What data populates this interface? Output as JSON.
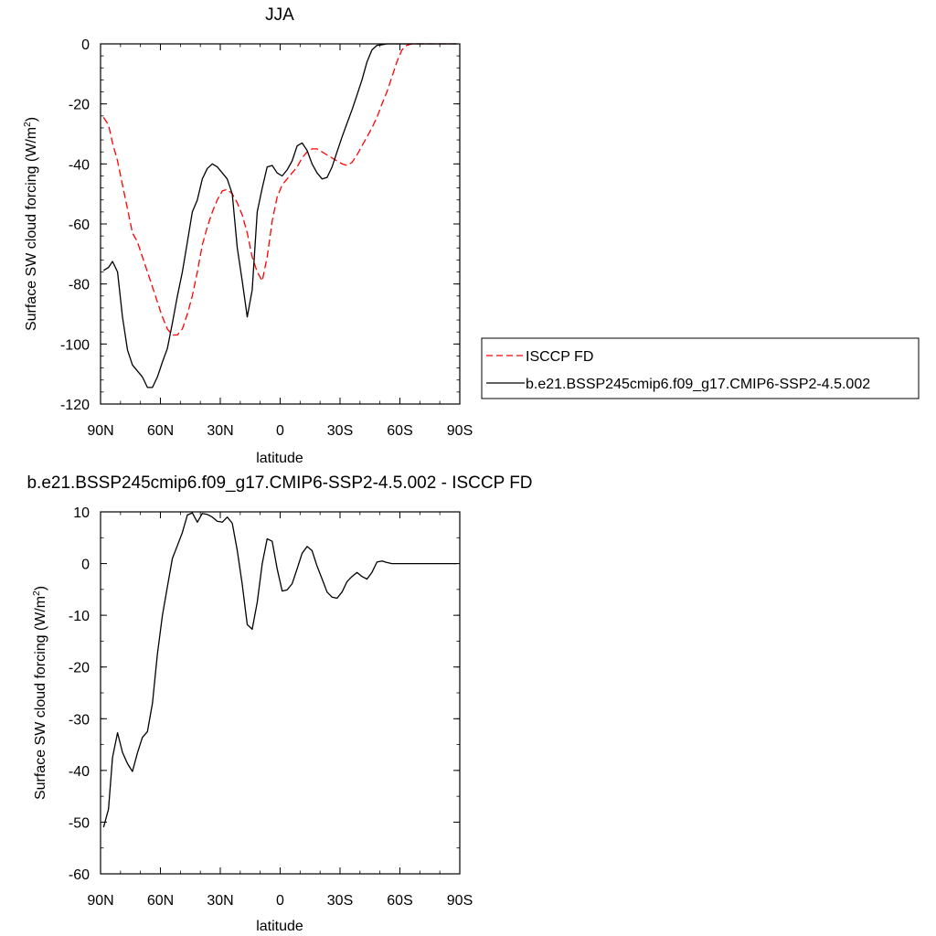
{
  "chart_data": [
    {
      "type": "line",
      "title": "JJA",
      "xlabel": "latitude",
      "ylabel": "Surface SW cloud forcing (W/m²)",
      "ylabel_parts": [
        "Surface SW cloud forcing (W/m",
        "2",
        ")"
      ],
      "xlim": [
        -90,
        90
      ],
      "ylim": [
        -120,
        0
      ],
      "x_ticks": [
        -90,
        -60,
        -30,
        0,
        30,
        60,
        90
      ],
      "x_ticklabels": [
        "90N",
        "60N",
        "30N",
        "0",
        "30S",
        "60S",
        "90S"
      ],
      "y_ticks": [
        -120,
        -100,
        -80,
        -60,
        -40,
        -20,
        0
      ],
      "y_ticklabels": [
        "-120",
        "-100",
        "-80",
        "-60",
        "-40",
        "-20",
        "0"
      ],
      "legend": "right",
      "series": [
        {
          "name": "ISCCP FD",
          "color": "#ff0000",
          "dash": "dashed",
          "x": [
            -88.5,
            -86,
            -84,
            -81.5,
            -79,
            -76.5,
            -74,
            -71.5,
            -69,
            -66.5,
            -64,
            -61.5,
            -59,
            -56.5,
            -54,
            -51.5,
            -49,
            -46.5,
            -44,
            -41.5,
            -39,
            -36.5,
            -34,
            -31.5,
            -29,
            -26.5,
            -24,
            -21.5,
            -19,
            -16.5,
            -14,
            -11.5,
            -9,
            -6.5,
            -4,
            -1.5,
            1,
            3.5,
            6,
            8.5,
            11,
            13.5,
            16,
            18.5,
            21,
            23.5,
            26,
            28.5,
            31,
            33.5,
            36,
            38.5,
            41,
            43.5,
            46,
            48.5,
            51,
            53.5,
            56,
            58.5,
            61,
            63.5,
            66,
            68.5,
            71,
            73.5,
            76,
            78.5,
            81,
            83.5,
            86,
            88.5
          ],
          "values": [
            -24.5,
            -27,
            -33,
            -39,
            -47,
            -55,
            -63,
            -66,
            -71,
            -76,
            -81,
            -86,
            -91,
            -95,
            -97,
            -97,
            -95,
            -90,
            -84,
            -76,
            -67,
            -61,
            -56,
            -52,
            -49,
            -48.5,
            -50,
            -53,
            -57,
            -63,
            -71,
            -76,
            -79,
            -71,
            -59,
            -51,
            -47,
            -45,
            -43,
            -41,
            -38,
            -36,
            -35,
            -35,
            -36,
            -37,
            -38,
            -39,
            -40,
            -40.5,
            -39.5,
            -37,
            -34,
            -31,
            -28,
            -24.5,
            -20,
            -16,
            -11,
            -6,
            -2,
            -0.5,
            0,
            0,
            0,
            0,
            0,
            0,
            0,
            0,
            0,
            0
          ]
        },
        {
          "name": "b.e21.BSSP245cmip6.f09_g17.CMIP6-SSP2-4.5.002",
          "color": "#000000",
          "dash": "solid",
          "x": [
            -88.5,
            -86,
            -84,
            -81.5,
            -79,
            -76.5,
            -74,
            -71.5,
            -69,
            -66.5,
            -64,
            -61.5,
            -59,
            -56.5,
            -54,
            -51.5,
            -49,
            -46.5,
            -44,
            -41.5,
            -39,
            -36.5,
            -34,
            -31.5,
            -29,
            -26.5,
            -24,
            -21.5,
            -19,
            -16.5,
            -14,
            -11.5,
            -9,
            -6.5,
            -4,
            -1.5,
            1,
            3.5,
            6,
            8.5,
            11,
            13.5,
            16,
            18.5,
            21,
            23.5,
            26,
            28.5,
            31,
            33.5,
            36,
            38.5,
            41,
            43.5,
            46,
            48.5,
            51,
            53.5,
            56,
            58.5,
            61,
            63.5,
            66,
            68.5,
            71,
            73.5,
            76,
            78.5,
            81,
            83.5,
            86,
            88.5
          ],
          "values": [
            -75.5,
            -74.5,
            -72.5,
            -76,
            -91,
            -102,
            -107,
            -109,
            -111,
            -114.5,
            -114.5,
            -111,
            -106,
            -101.5,
            -93,
            -84,
            -76,
            -66,
            -56,
            -52,
            -45,
            -41.5,
            -40,
            -41,
            -43,
            -45,
            -50,
            -68,
            -79,
            -91,
            -82,
            -56,
            -48,
            -41,
            -40.5,
            -43,
            -44,
            -42,
            -39,
            -34,
            -33,
            -35.5,
            -40,
            -43,
            -45,
            -44.5,
            -41,
            -36,
            -31,
            -26.5,
            -22,
            -17,
            -12,
            -6,
            -2,
            -0.5,
            -0.3,
            0,
            0,
            0,
            0,
            0,
            0,
            0,
            0,
            0,
            0,
            0,
            0,
            0,
            0,
            0
          ]
        }
      ]
    },
    {
      "type": "line",
      "title": "b.e21.BSSP245cmip6.f09_g17.CMIP6-SSP2-4.5.002 - ISCCP FD",
      "xlabel": "latitude",
      "ylabel": "Surface SW cloud forcing (W/m²)",
      "ylabel_parts": [
        "Surface SW cloud forcing (W/m",
        "2",
        ")"
      ],
      "xlim": [
        -90,
        90
      ],
      "ylim": [
        -60,
        10
      ],
      "x_ticks": [
        -90,
        -60,
        -30,
        0,
        30,
        60,
        90
      ],
      "x_ticklabels": [
        "90N",
        "60N",
        "30N",
        "0",
        "30S",
        "60S",
        "90S"
      ],
      "y_ticks": [
        -60,
        -50,
        -40,
        -30,
        -20,
        -10,
        0,
        10
      ],
      "y_ticklabels": [
        "-60",
        "-50",
        "-40",
        "-30",
        "-20",
        "-10",
        "0",
        "10"
      ],
      "series": [
        {
          "color": "#000000",
          "dash": "solid",
          "x": [
            -88.5,
            -86,
            -84,
            -81.5,
            -79,
            -76.5,
            -74,
            -71.5,
            -69,
            -66.5,
            -64,
            -61.5,
            -59,
            -56.5,
            -54,
            -51.5,
            -49,
            -46.5,
            -44,
            -41.5,
            -39,
            -36.5,
            -34,
            -31.5,
            -29,
            -26.5,
            -24,
            -21.5,
            -19,
            -16.5,
            -14,
            -11.5,
            -9,
            -6.5,
            -4,
            -1.5,
            1,
            3.5,
            6,
            8.5,
            11,
            13.5,
            16,
            18.5,
            21,
            23.5,
            26,
            28.5,
            31,
            33.5,
            36,
            38.5,
            41,
            43.5,
            46,
            48.5,
            51,
            53.5,
            56,
            58.5,
            61,
            63.5,
            66,
            68.5,
            71,
            73.5,
            76,
            78.5,
            81,
            83.5,
            86,
            88.5
          ],
          "values": [
            -51,
            -47.5,
            -37.5,
            -32.7,
            -36.5,
            -38.7,
            -40.2,
            -36.6,
            -33.6,
            -32.5,
            -27,
            -17.5,
            -10,
            -4.5,
            1,
            3.5,
            6,
            9.4,
            9.8,
            8,
            9.7,
            9.5,
            9,
            8.2,
            8,
            9,
            7.8,
            2.5,
            -4,
            -11.8,
            -12.7,
            -7.5,
            0,
            4.8,
            4.3,
            -1,
            -5.3,
            -5.1,
            -3.9,
            -1,
            2,
            3.3,
            2.5,
            -0.5,
            -3,
            -5.5,
            -6.5,
            -6.7,
            -5.5,
            -3.5,
            -2.5,
            -1.7,
            -2.5,
            -3,
            -1.7,
            0.3,
            0.5,
            0.2,
            0,
            0,
            0,
            0,
            0,
            0,
            0,
            0,
            0,
            0,
            0,
            0,
            0,
            0
          ]
        }
      ]
    }
  ]
}
